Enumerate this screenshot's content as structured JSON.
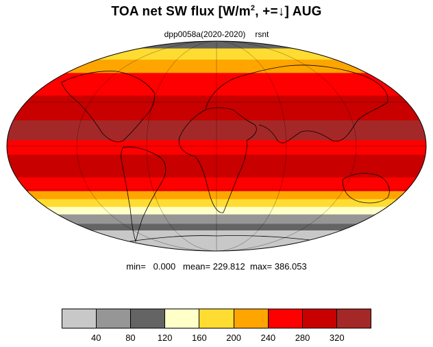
{
  "title": {
    "main": "TOA net SW flux [W/m",
    "sup": "2",
    "tail": ", +=↓]  AUG"
  },
  "subtitle": {
    "experiment": "dpp0058a(2020-2020)",
    "variable": "rsnt"
  },
  "stats": {
    "min": "min=   0.000",
    "mean": "mean= 229.812",
    "max": "max= 386.053"
  },
  "colorbar": {
    "colors": [
      "#c8c8c8",
      "#969696",
      "#646464",
      "#ffffc8",
      "#ffdc32",
      "#ffa500",
      "#ff0000",
      "#c80000",
      "#a52828"
    ],
    "labels": [
      "40",
      "80",
      "120",
      "160",
      "200",
      "240",
      "280",
      "320"
    ]
  },
  "map_data": {
    "projection": "mollweide",
    "month": "AUG",
    "zonal_bands": [
      {
        "lat_top": 90,
        "lat_bottom": 78,
        "level": "gray-dark"
      },
      {
        "lat_top": 78,
        "lat_bottom": 66,
        "level": "yellow"
      },
      {
        "lat_top": 66,
        "lat_bottom": 54,
        "level": "orange"
      },
      {
        "lat_top": 54,
        "lat_bottom": 36,
        "level": "red"
      },
      {
        "lat_top": 36,
        "lat_bottom": 18,
        "level": "red-dark"
      },
      {
        "lat_top": 18,
        "lat_bottom": 4,
        "level": "brown-red"
      },
      {
        "lat_top": 4,
        "lat_bottom": -6,
        "level": "red"
      },
      {
        "lat_top": -6,
        "lat_bottom": -22,
        "level": "red-dark"
      },
      {
        "lat_top": -22,
        "lat_bottom": -32,
        "level": "red"
      },
      {
        "lat_top": -32,
        "lat_bottom": -38,
        "level": "orange"
      },
      {
        "lat_top": -38,
        "lat_bottom": -44,
        "level": "yellow"
      },
      {
        "lat_top": -44,
        "lat_bottom": -50,
        "level": "cream"
      },
      {
        "lat_top": -50,
        "lat_bottom": -58,
        "level": "gray-mid"
      },
      {
        "lat_top": -58,
        "lat_bottom": -64,
        "level": "gray-dark"
      },
      {
        "lat_top": -64,
        "lat_bottom": -90,
        "level": "gray-light"
      }
    ]
  }
}
